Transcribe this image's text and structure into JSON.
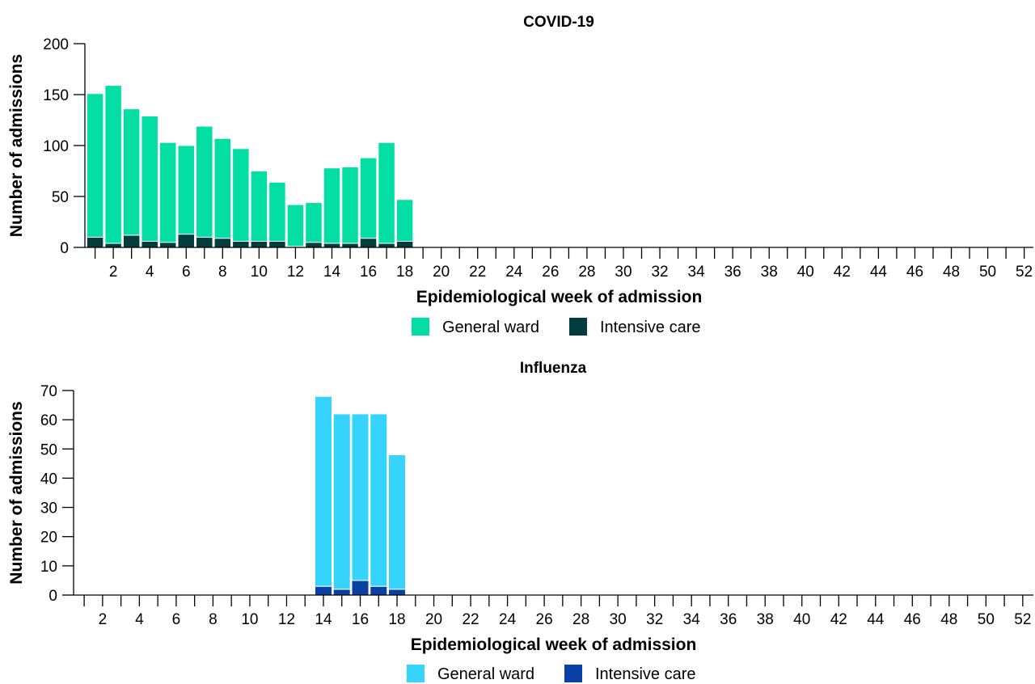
{
  "chart_data": [
    {
      "type": "bar",
      "stacked": true,
      "title": "COVID-19",
      "xlabel": "Epidemiological week of admission",
      "ylabel": "Number of admissions",
      "ylim": [
        0,
        200
      ],
      "yticks": [
        0,
        50,
        100,
        150,
        200
      ],
      "xlim": [
        1,
        52
      ],
      "xtick_labels": [
        "2",
        "4",
        "6",
        "8",
        "10",
        "12",
        "14",
        "16",
        "18",
        "20",
        "22",
        "24",
        "26",
        "28",
        "30",
        "32",
        "34",
        "36",
        "38",
        "40",
        "42",
        "44",
        "46",
        "48",
        "50",
        "52"
      ],
      "weeks": [
        1,
        2,
        3,
        4,
        5,
        6,
        7,
        8,
        9,
        10,
        11,
        12,
        13,
        14,
        15,
        16,
        17,
        18
      ],
      "series": [
        {
          "name": "Intensive care",
          "color": "#023d3d",
          "values": [
            10,
            4,
            12,
            6,
            5,
            13,
            10,
            9,
            6,
            6,
            6,
            1,
            5,
            4,
            4,
            9,
            4,
            6
          ]
        },
        {
          "name": "General ward",
          "color": "#03dea4",
          "values": [
            141,
            155,
            124,
            123,
            98,
            87,
            109,
            98,
            91,
            69,
            58,
            41,
            39,
            74,
            75,
            79,
            99,
            41
          ]
        }
      ],
      "legend": [
        {
          "name": "General ward",
          "color": "#03dea4"
        },
        {
          "name": "Intensive care",
          "color": "#023d3d"
        }
      ],
      "legend_position": "bottom"
    },
    {
      "type": "bar",
      "stacked": true,
      "title": "Influenza",
      "xlabel": "Epidemiological week of admission",
      "ylabel": "Number of admissions",
      "ylim": [
        0,
        70
      ],
      "yticks": [
        0,
        10,
        20,
        30,
        40,
        50,
        60,
        70
      ],
      "xlim": [
        1,
        52
      ],
      "xtick_labels": [
        "2",
        "4",
        "6",
        "8",
        "10",
        "12",
        "14",
        "16",
        "18",
        "20",
        "22",
        "24",
        "26",
        "28",
        "30",
        "32",
        "34",
        "36",
        "38",
        "40",
        "42",
        "44",
        "46",
        "48",
        "50",
        "52"
      ],
      "weeks": [
        14,
        15,
        16,
        17,
        18
      ],
      "series": [
        {
          "name": "Intensive care",
          "color": "#0a3fa3",
          "values": [
            3,
            2,
            5,
            3,
            2
          ]
        },
        {
          "name": "General ward",
          "color": "#36d4fd",
          "values": [
            65,
            60,
            57,
            59,
            46
          ]
        }
      ],
      "legend": [
        {
          "name": "General ward",
          "color": "#36d4fd"
        },
        {
          "name": "Intensive care",
          "color": "#0a3fa3"
        }
      ],
      "legend_position": "bottom"
    }
  ]
}
